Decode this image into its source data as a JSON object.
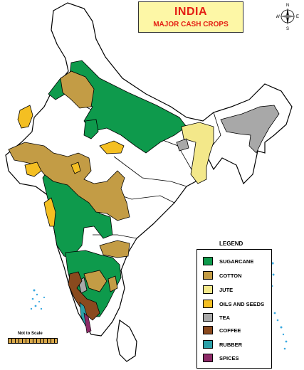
{
  "title": {
    "main": "INDIA",
    "sub": "MAJOR CASH CROPS"
  },
  "compass": {
    "north": "N",
    "south": "S",
    "east": "E",
    "west": "W"
  },
  "legend": {
    "title": "LEGEND",
    "items": [
      {
        "label": "SUGARCANE",
        "color": "#0e9a4c"
      },
      {
        "label": "COTTON",
        "color": "#c39c45"
      },
      {
        "label": "JUTE",
        "color": "#f3e88a"
      },
      {
        "label": "OILS AND SEEDS",
        "color": "#f4bf22"
      },
      {
        "label": "TEA",
        "color": "#a8a8a8"
      },
      {
        "label": "COFFEE",
        "color": "#8a4a1e"
      },
      {
        "label": "RUBBER",
        "color": "#2ba0a8"
      },
      {
        "label": "SPICES",
        "color": "#8c2a67"
      }
    ]
  },
  "scale": {
    "label": "Not to Scale"
  },
  "colors": {
    "ocean_islands": "#3aa9e0",
    "outline": "#000000",
    "land": "#ffffff"
  }
}
